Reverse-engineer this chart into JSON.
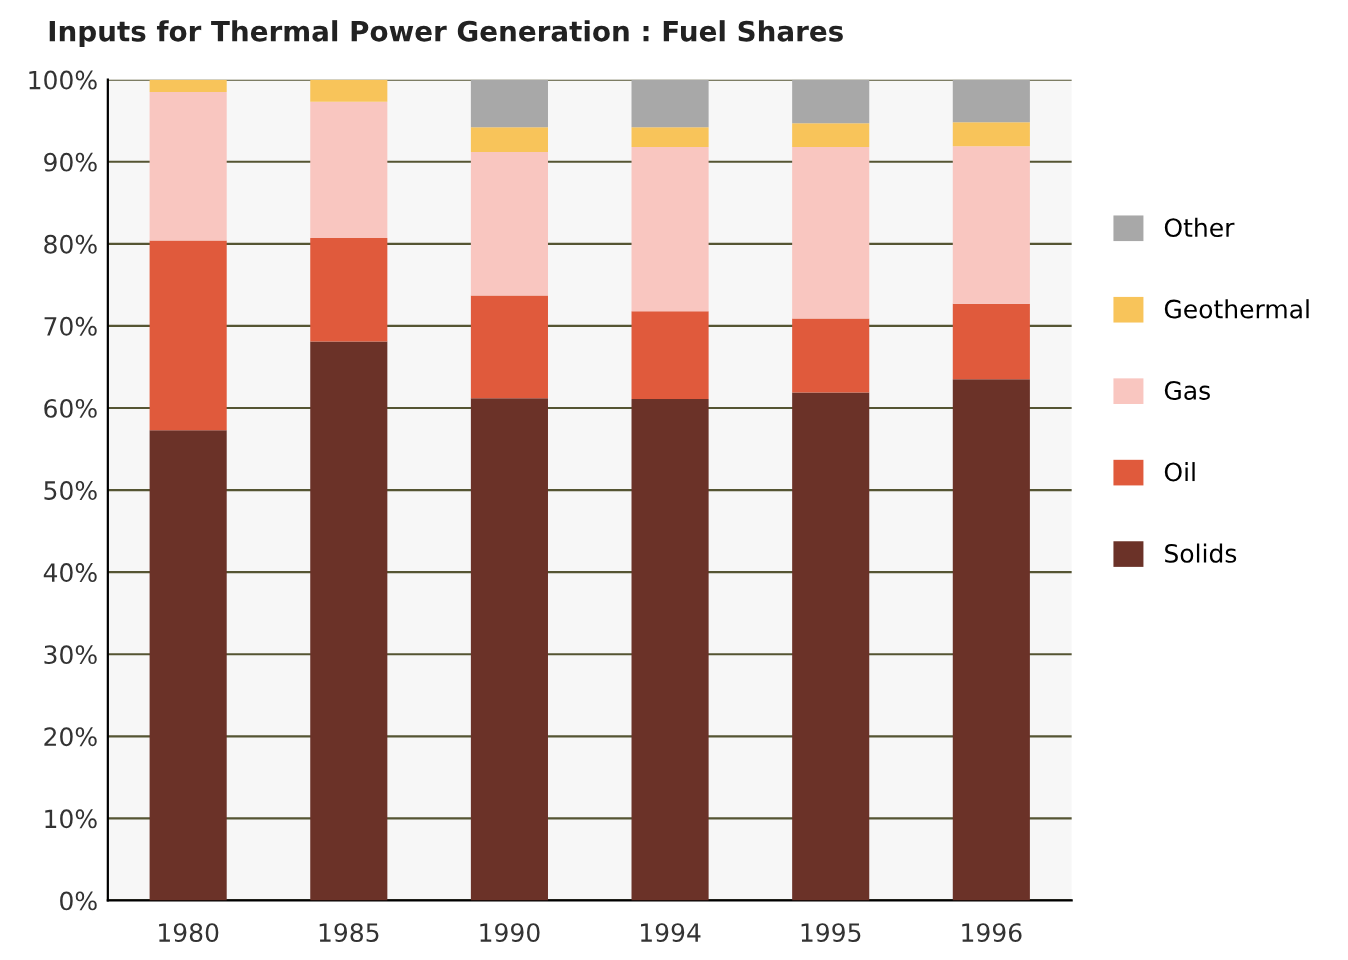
{
  "chart_data": {
    "type": "bar",
    "title": "Inputs for Thermal Power Generation : Fuel Shares",
    "categories": [
      "1980",
      "1985",
      "1990",
      "1994",
      "1995",
      "1996"
    ],
    "stacked": true,
    "series": [
      {
        "name": "Solids",
        "color": "#6b3228",
        "values": [
          57.3,
          68.1,
          61.2,
          61.1,
          61.9,
          63.5
        ]
      },
      {
        "name": "Oil",
        "color": "#e05a3c",
        "values": [
          23.1,
          12.6,
          12.5,
          10.7,
          9.0,
          9.2
        ]
      },
      {
        "name": "Gas",
        "color": "#f9c6c0",
        "values": [
          18.1,
          16.6,
          17.5,
          20.0,
          20.9,
          19.2
        ]
      },
      {
        "name": "Geothermal",
        "color": "#f8c45a",
        "values": [
          1.5,
          2.7,
          3.0,
          2.4,
          2.9,
          2.9
        ]
      },
      {
        "name": "Other",
        "color": "#a8a8a8",
        "values": [
          0,
          0,
          5.8,
          5.8,
          5.3,
          5.2
        ]
      }
    ],
    "ylim": [
      0,
      100
    ],
    "yticks": [
      {
        "value": 0,
        "label": "0%"
      },
      {
        "value": 10,
        "label": "10%"
      },
      {
        "value": 20,
        "label": "20%"
      },
      {
        "value": 30,
        "label": "30%"
      },
      {
        "value": 40,
        "label": "40%"
      },
      {
        "value": 50,
        "label": "50%"
      },
      {
        "value": 60,
        "label": "60%"
      },
      {
        "value": 70,
        "label": "70%"
      },
      {
        "value": 80,
        "label": "80%"
      },
      {
        "value": 90,
        "label": "90%"
      },
      {
        "value": 100,
        "label": "100%"
      }
    ],
    "grid": "y",
    "legend": "right"
  }
}
